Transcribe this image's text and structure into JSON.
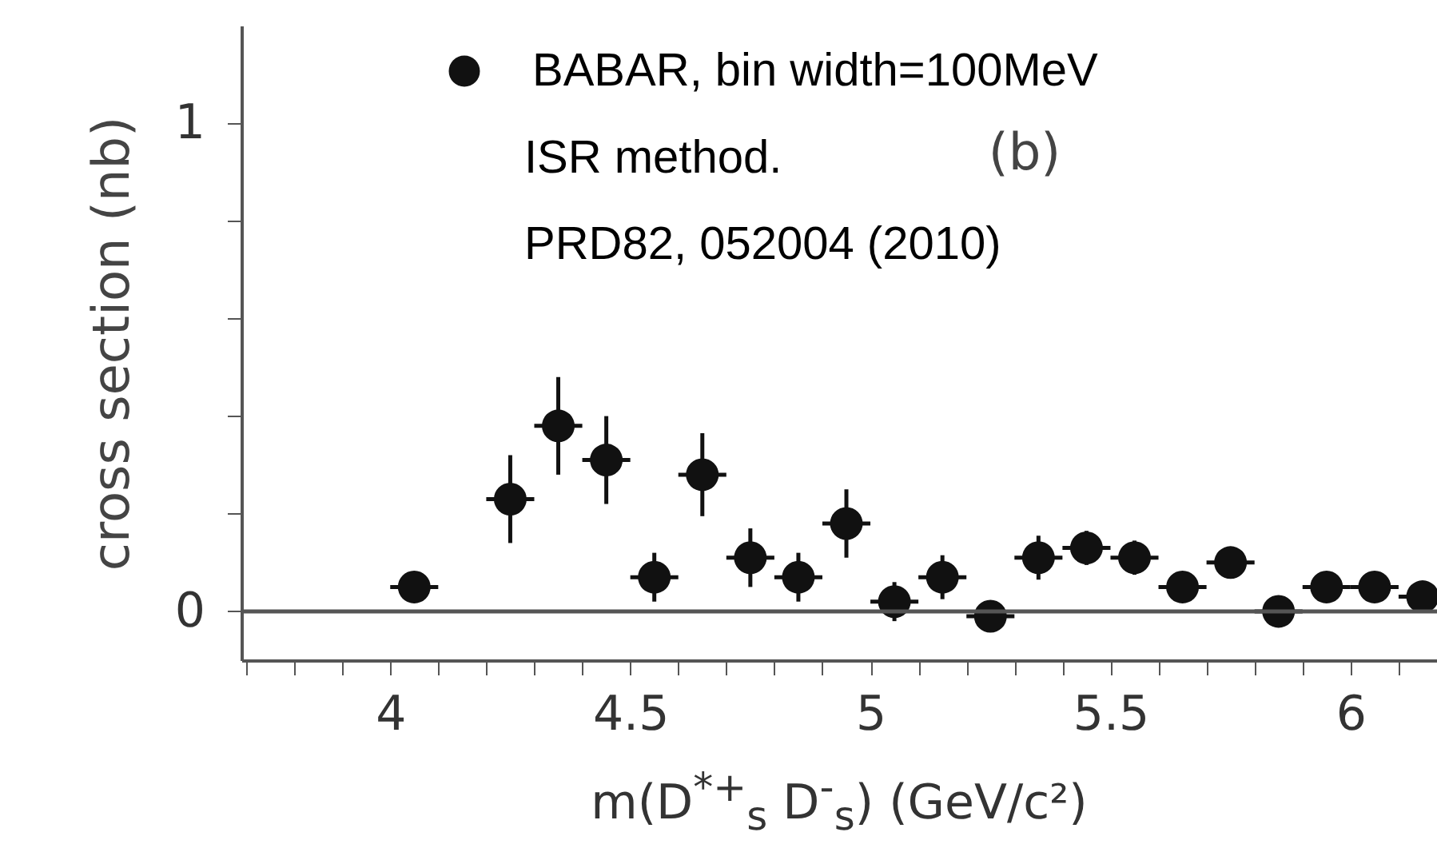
{
  "chart_data": {
    "type": "scatter",
    "xlabel": "m(D$^{*+}$$_{s}$ D$^{-}$$_{s}$) (GeV/c²)",
    "ylabel": "cross section (nb)",
    "x": [
      4.05,
      4.25,
      4.35,
      4.45,
      4.55,
      4.65,
      4.75,
      4.85,
      4.95,
      5.05,
      5.15,
      5.25,
      5.35,
      5.45,
      5.55,
      5.65,
      5.75,
      5.85,
      5.95,
      6.05,
      6.15
    ],
    "series": [
      {
        "name": "BABAR, bin width=100MeV",
        "color": "#111111",
        "values": [
          0.05,
          0.23,
          0.38,
          0.31,
          0.07,
          0.28,
          0.11,
          0.07,
          0.18,
          0.02,
          0.07,
          -0.01,
          0.11,
          0.13,
          0.11,
          0.05,
          0.1,
          0.0,
          0.05,
          0.05,
          0.03
        ],
        "errors": [
          0.02,
          0.09,
          0.1,
          0.09,
          0.05,
          0.085,
          0.06,
          0.05,
          0.07,
          0.04,
          0.045,
          0.02,
          0.045,
          0.035,
          0.035,
          0.02,
          0.025,
          0.02,
          0.02,
          0.02,
          0.02
        ],
        "xerrors": [
          0.05,
          0.05,
          0.05,
          0.05,
          0.05,
          0.05,
          0.05,
          0.05,
          0.05,
          0.05,
          0.05,
          0.05,
          0.05,
          0.05,
          0.05,
          0.05,
          0.05,
          0.05,
          0.05,
          0.05,
          0.05
        ]
      }
    ],
    "annotations": [
      "ISR method.",
      "PRD82, 052004 (2010)",
      "(b)"
    ],
    "xlim": [
      3.69,
      6.18
    ],
    "xticks": [
      {
        "value": 3.7,
        "label": null
      },
      {
        "value": 3.8,
        "label": null
      },
      {
        "value": 3.9,
        "label": null
      },
      4,
      {
        "value": 4.1,
        "label": null
      },
      {
        "value": 4.2,
        "label": null
      },
      {
        "value": 4.3,
        "label": null
      },
      {
        "value": 4.4,
        "label": null
      },
      4.5,
      {
        "value": 4.6,
        "label": null
      },
      {
        "value": 4.7,
        "label": null
      },
      {
        "value": 4.8,
        "label": null
      },
      {
        "value": 4.9,
        "label": null
      },
      5,
      {
        "value": 5.1,
        "label": null
      },
      {
        "value": 5.2,
        "label": null
      },
      {
        "value": 5.3,
        "label": null
      },
      {
        "value": 5.4,
        "label": null
      },
      5.5,
      {
        "value": 5.6,
        "label": null
      },
      {
        "value": 5.7,
        "label": null
      },
      {
        "value": 5.8,
        "label": null
      },
      {
        "value": 5.9,
        "label": null
      },
      6,
      {
        "value": 6.1,
        "label": null
      }
    ],
    "ylim": [
      -0.1,
      1.2
    ],
    "yticks": [
      0,
      {
        "value": 0.2,
        "label": null
      },
      {
        "value": 0.4,
        "label": null
      },
      {
        "value": 0.6,
        "label": null
      },
      {
        "value": 0.8,
        "label": null
      },
      1
    ],
    "ref_lines": [
      {
        "axis": "y",
        "value": 0,
        "color": "#555555"
      }
    ],
    "grid": false,
    "legend": "top left",
    "marker": "circle"
  }
}
